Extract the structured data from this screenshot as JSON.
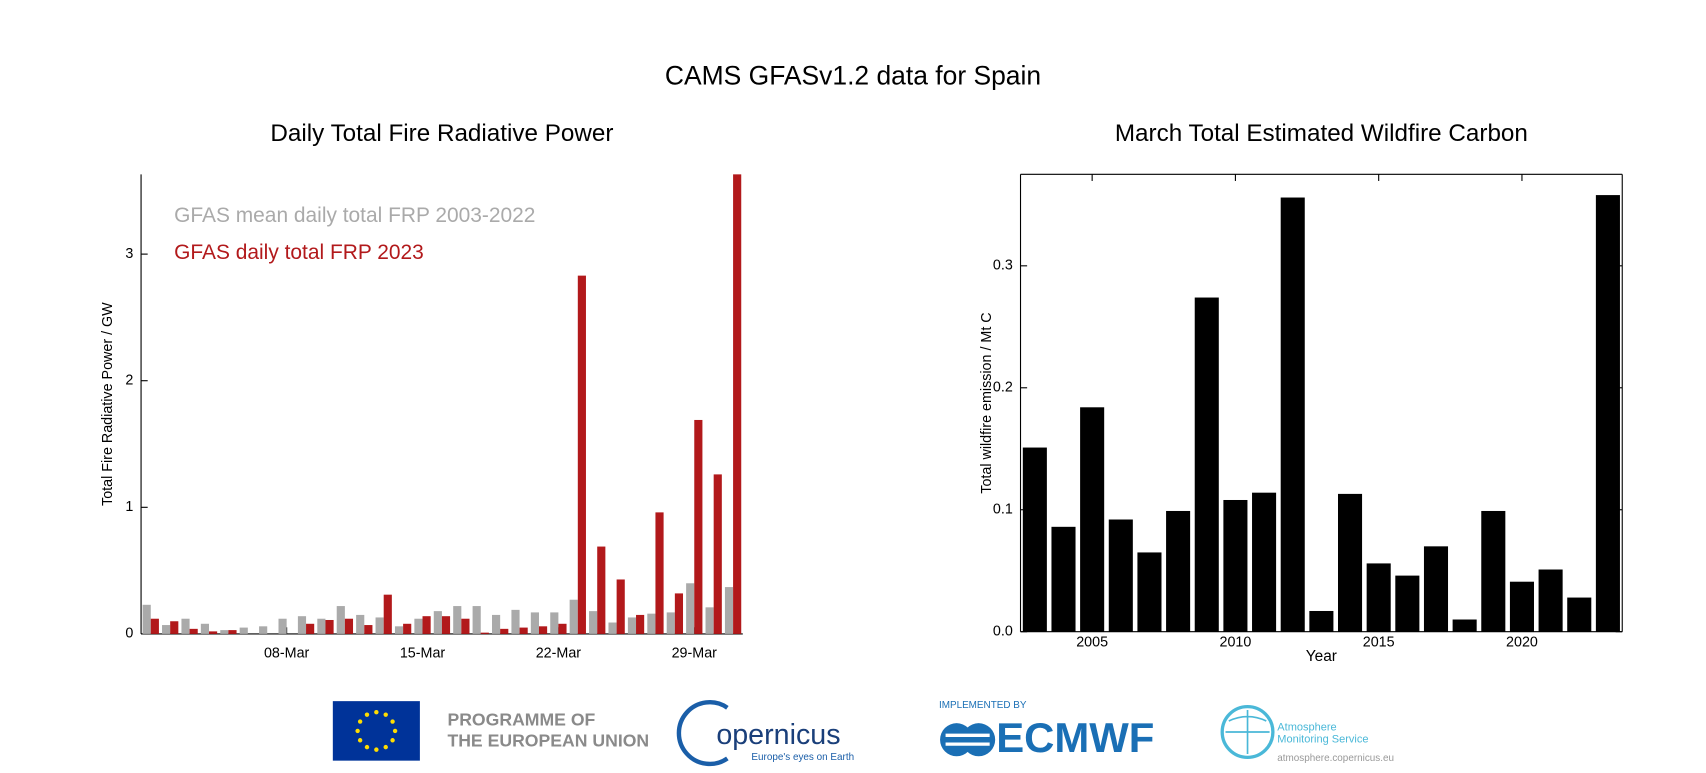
{
  "title": "CAMS GFASv1.2 data for Spain",
  "chart_data": [
    {
      "type": "bar",
      "title": "Daily Total Fire Radiative Power",
      "categories": [
        null,
        null,
        null,
        null,
        null,
        null,
        null,
        "08-Mar",
        null,
        null,
        null,
        null,
        null,
        null,
        "15-Mar",
        null,
        null,
        null,
        null,
        null,
        null,
        "22-Mar",
        null,
        null,
        null,
        null,
        null,
        null,
        "29-Mar",
        null,
        null
      ],
      "series": [
        {
          "name": "GFAS mean daily total FRP 2003-2022",
          "color": "#aaaaaa",
          "values": [
            0.23,
            0.07,
            0.12,
            0.08,
            0.03,
            0.05,
            0.06,
            0.12,
            0.14,
            0.12,
            0.22,
            0.15,
            0.13,
            0.06,
            0.12,
            0.18,
            0.22,
            0.22,
            0.15,
            0.19,
            0.17,
            0.17,
            0.27,
            0.18,
            0.09,
            0.13,
            0.16,
            0.17,
            0.4,
            0.21,
            0.37
          ]
        },
        {
          "name": "GFAS daily total FRP 2023",
          "color": "#b2191b",
          "values": [
            0.12,
            0.1,
            0.04,
            0.02,
            0.03,
            0.0,
            0.0,
            0.0,
            0.08,
            0.11,
            0.12,
            0.07,
            0.31,
            0.08,
            0.14,
            0.14,
            0.12,
            0.01,
            0.04,
            0.05,
            0.06,
            0.08,
            2.83,
            0.69,
            0.43,
            0.15,
            0.96,
            0.32,
            1.69,
            1.26,
            3.63
          ]
        }
      ],
      "ylabel": "Total Fire Radiative Power / GW",
      "ylim": [
        0,
        3.63
      ],
      "yticks": [
        0,
        1,
        2,
        3
      ],
      "legend": "upper left"
    },
    {
      "type": "bar",
      "title": "March Total Estimated Wildfire Carbon",
      "x": [
        2003,
        2004,
        2005,
        2006,
        2007,
        2008,
        2009,
        2010,
        2011,
        2012,
        2013,
        2014,
        2015,
        2016,
        2017,
        2018,
        2019,
        2020,
        2021,
        2022,
        2023
      ],
      "values": [
        0.151,
        0.086,
        0.184,
        0.092,
        0.065,
        0.099,
        0.274,
        0.108,
        0.114,
        0.356,
        0.017,
        0.113,
        0.056,
        0.046,
        0.07,
        0.01,
        0.099,
        0.041,
        0.051,
        0.028,
        0.358
      ],
      "color": "#000000",
      "xlabel": "Year",
      "ylabel": "Total wildfire emission / Mt C",
      "xlim": [
        2002.5,
        2023.5
      ],
      "xticks": [
        2005,
        2010,
        2015,
        2020
      ],
      "ylim": [
        0,
        0.375
      ],
      "yticks": [
        {
          "value": 0,
          "label": "0.0"
        },
        0.1,
        0.2,
        0.3
      ]
    }
  ],
  "footer": {
    "eu_line1": "PROGRAMME OF",
    "eu_line2": "THE EUROPEAN UNION",
    "copernicus": "opernicus",
    "copernicus_tagline": "Europe's eyes on Earth",
    "implemented_by": "IMPLEMENTED BY",
    "ecmwf": "ECMWF",
    "cams_line1": "Atmosphere",
    "cams_line2": "Monitoring Service",
    "cams_url": "atmosphere.copernicus.eu"
  }
}
